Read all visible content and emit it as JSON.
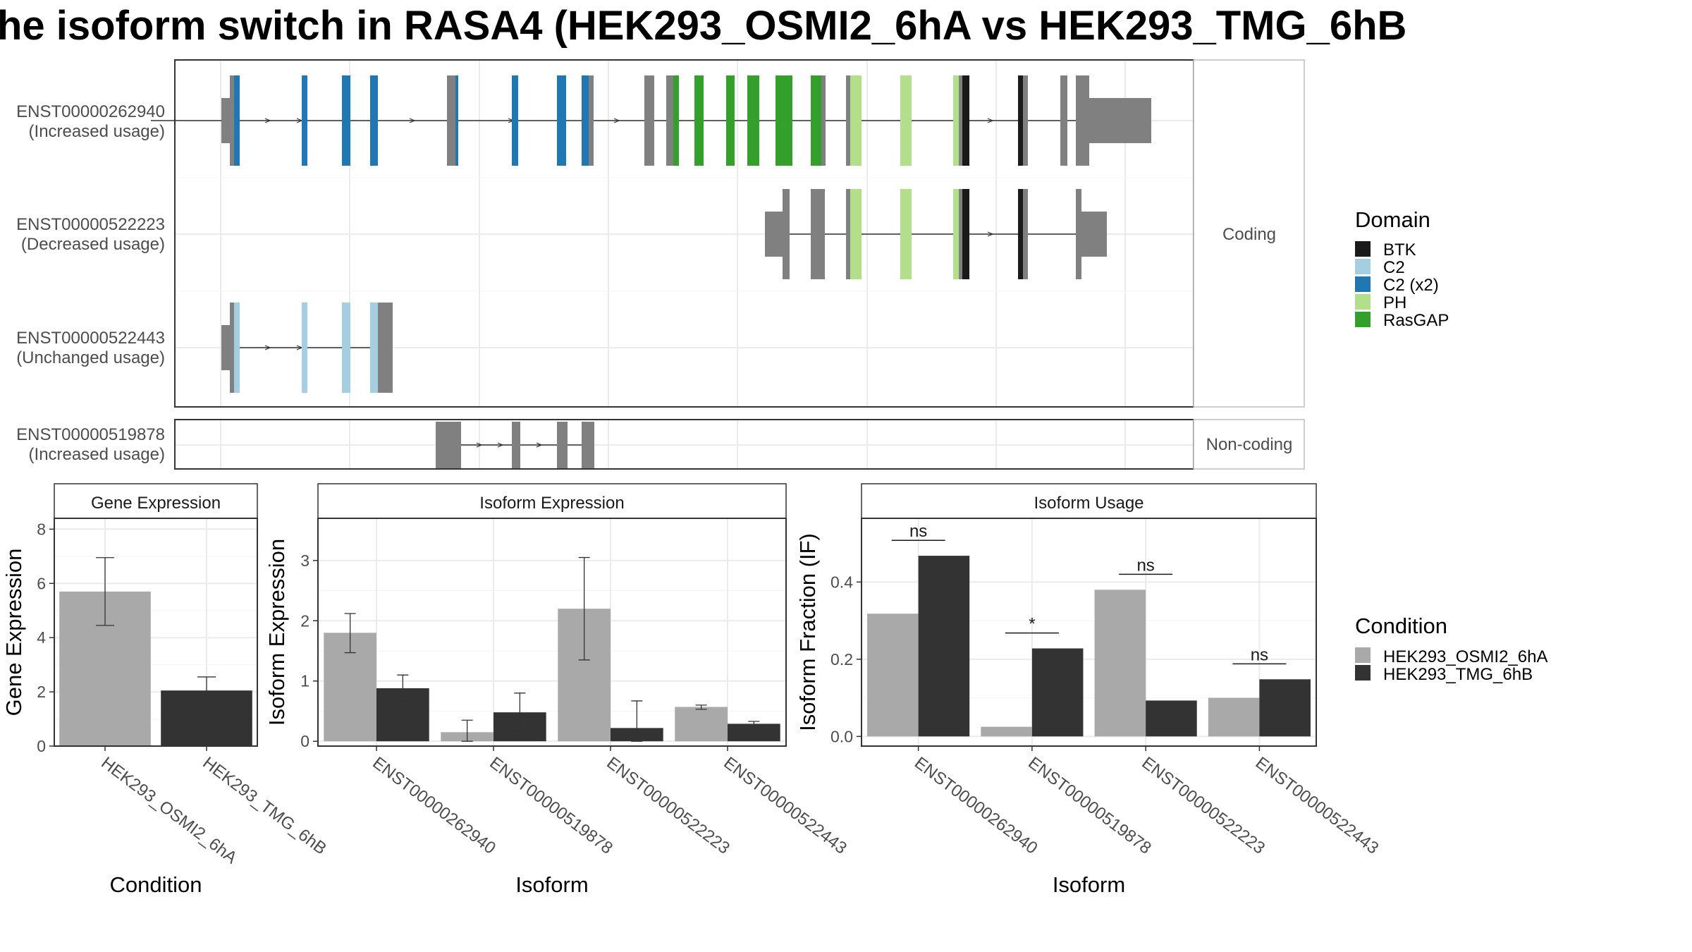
{
  "title": "he isoform switch in RASA4 (HEK293_OSMI2_6hA vs HEK293_TMG_6hB",
  "colors": {
    "BTK": "#1a1a1a",
    "C2": "#a6cee3",
    "C2 (x2)": "#1f78b4",
    "PH": "#b2df8a",
    "RasGAP": "#33a02c",
    "no_domain": "#808080",
    "cond_a": "#a9a9a9",
    "cond_b": "#333333"
  },
  "structure": {
    "facets": [
      "Coding",
      "Non-coding"
    ],
    "transcripts": [
      {
        "id": "ENST00000262940",
        "usage": "(Increased usage)",
        "facet": "Coding"
      },
      {
        "id": "ENST00000522223",
        "usage": "(Decreased usage)",
        "facet": "Coding"
      },
      {
        "id": "ENST00000522443",
        "usage": "(Unchanged usage)",
        "facet": "Coding"
      },
      {
        "id": "ENST00000519878",
        "usage": "(Increased usage)",
        "facet": "Non-coding"
      }
    ]
  },
  "legend": {
    "domain_title": "Domain",
    "domains": [
      "BTK",
      "C2",
      "C2 (x2)",
      "PH",
      "RasGAP"
    ],
    "condition_title": "Condition",
    "conditions": [
      "HEK293_OSMI2_6hA",
      "HEK293_TMG_6hB"
    ]
  },
  "chart_data": [
    {
      "type": "bar",
      "title": "Gene Expression",
      "xlabel": "Condition",
      "ylabel": "Gene Expression",
      "categories": [
        "HEK293_OSMI2_6hA",
        "HEK293_TMG_6hB"
      ],
      "values": [
        5.7,
        2.05
      ],
      "error_low": [
        4.45,
        1.55
      ],
      "error_high": [
        6.95,
        2.55
      ],
      "ylim": [
        0,
        8.4
      ],
      "yticks": [
        0,
        2,
        4,
        6,
        8
      ]
    },
    {
      "type": "bar",
      "title": "Isoform Expression",
      "xlabel": "Isoform",
      "ylabel": "Isoform Expression",
      "categories": [
        "ENST00000262940",
        "ENST00000519878",
        "ENST00000522223",
        "ENST00000522443"
      ],
      "series": [
        {
          "name": "HEK293_OSMI2_6hA",
          "values": [
            1.8,
            0.15,
            2.2,
            0.57
          ],
          "error_low": [
            1.47,
            0.0,
            1.35,
            0.53
          ],
          "error_high": [
            2.12,
            0.35,
            3.05,
            0.6
          ]
        },
        {
          "name": "HEK293_TMG_6hB",
          "values": [
            0.88,
            0.48,
            0.22,
            0.29
          ],
          "error_low": [
            0.66,
            0.18,
            0.0,
            0.25
          ],
          "error_high": [
            1.1,
            0.8,
            0.67,
            0.33
          ]
        }
      ],
      "ylim": [
        -0.08,
        3.7
      ],
      "yticks": [
        0,
        1,
        2,
        3
      ]
    },
    {
      "type": "bar",
      "title": "Isoform Usage",
      "xlabel": "Isoform",
      "ylabel": "Isoform Fraction (IF)",
      "categories": [
        "ENST00000262940",
        "ENST00000519878",
        "ENST00000522223",
        "ENST00000522443"
      ],
      "series": [
        {
          "name": "HEK293_OSMI2_6hA",
          "values": [
            0.318,
            0.025,
            0.38,
            0.1
          ]
        },
        {
          "name": "HEK293_TMG_6hB",
          "values": [
            0.468,
            0.228,
            0.093,
            0.148
          ]
        }
      ],
      "significance": [
        "ns",
        "*",
        "ns",
        "ns"
      ],
      "ylim": [
        -0.025,
        0.565
      ],
      "yticks": [
        "0.0",
        "0.2",
        "0.4"
      ]
    }
  ]
}
